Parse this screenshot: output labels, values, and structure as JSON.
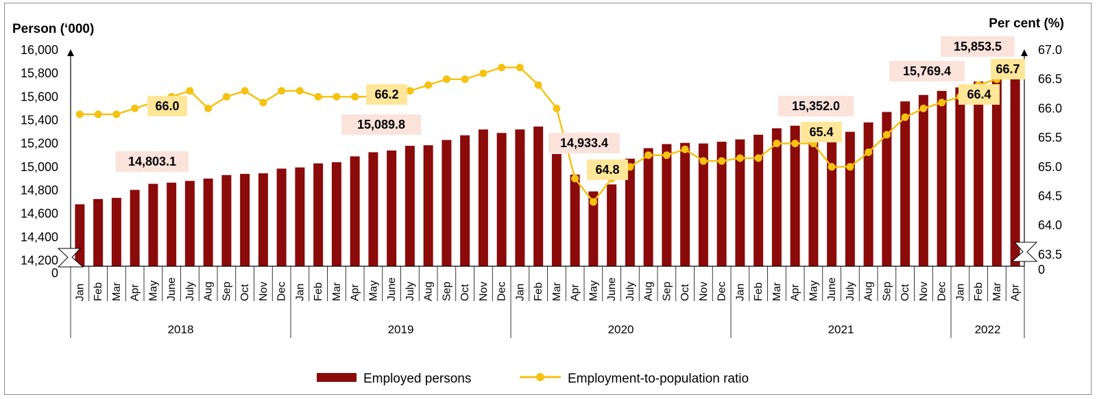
{
  "chart_data": {
    "type": "bar",
    "left_axis_title": "Person (‘000)",
    "right_axis_title": "Per cent (%)",
    "left_ticks": [
      "16,000",
      "15,800",
      "15,600",
      "15,400",
      "15,200",
      "15,000",
      "14,800",
      "14,600",
      "14,400",
      "14,200",
      "0"
    ],
    "right_ticks": [
      "67.0",
      "66.5",
      "66.0",
      "65.5",
      "65.0",
      "64.5",
      "64.0",
      "63.5",
      "0"
    ],
    "ylim_left": [
      14150,
      16000
    ],
    "ylim_right": [
      63.3,
      67.0
    ],
    "axis_break": true,
    "categories": [
      "Jan",
      "Feb",
      "Mar",
      "Apr",
      "May",
      "June",
      "July",
      "Aug",
      "Sep",
      "Oct",
      "Nov",
      "Dec",
      "Jan",
      "Feb",
      "Mar",
      "Apr",
      "May",
      "June",
      "July",
      "Aug",
      "Sep",
      "Oct",
      "Nov",
      "Dec",
      "Jan",
      "Feb",
      "Mar",
      "Apr",
      "May",
      "June",
      "July",
      "Aug",
      "Sep",
      "Oct",
      "Nov",
      "Dec",
      "Jan",
      "Feb",
      "Mar",
      "Apr",
      "May",
      "June",
      "July",
      "Aug",
      "Sep",
      "Oct",
      "Nov",
      "Dec",
      "Jan",
      "Feb",
      "Mar",
      "Apr"
    ],
    "years": [
      {
        "label": "2018",
        "months": 12
      },
      {
        "label": "2019",
        "months": 12
      },
      {
        "label": "2020",
        "months": 12
      },
      {
        "label": "2021",
        "months": 12
      },
      {
        "label": "2022",
        "months": 4
      }
    ],
    "series": [
      {
        "name": "Employed persons",
        "type": "bar",
        "axis": "left",
        "color": "#8b0a0a",
        "values": [
          14680,
          14725,
          14735,
          14803.1,
          14855,
          14865,
          14880,
          14900,
          14930,
          14940,
          14945,
          14985,
          14995,
          15030,
          15040,
          15089.8,
          15125,
          15140,
          15180,
          15185,
          15230,
          15270,
          15320,
          15290,
          15320,
          15345,
          15110,
          14933.4,
          14790,
          14850,
          15070,
          15160,
          15195,
          15205,
          15200,
          15215,
          15235,
          15275,
          15330,
          15352.0,
          15370,
          15300,
          15300,
          15380,
          15470,
          15560,
          15615,
          15650,
          15680,
          15730,
          15769.4,
          15853.5
        ]
      },
      {
        "name": "Employment-to-population ratio",
        "type": "line",
        "axis": "right",
        "color": "#f5c211",
        "values": [
          65.9,
          65.9,
          65.9,
          66.0,
          66.1,
          66.2,
          66.3,
          66.0,
          66.2,
          66.3,
          66.1,
          66.3,
          66.3,
          66.2,
          66.2,
          66.2,
          66.2,
          66.3,
          66.3,
          66.4,
          66.5,
          66.5,
          66.6,
          66.7,
          66.7,
          66.4,
          66.0,
          64.8,
          64.4,
          64.8,
          65.0,
          65.2,
          65.2,
          65.3,
          65.1,
          65.1,
          65.15,
          65.15,
          65.4,
          65.4,
          65.4,
          65.0,
          65.0,
          65.25,
          65.55,
          65.85,
          66.0,
          66.1,
          66.2,
          66.4,
          66.5,
          66.7
        ]
      }
    ],
    "callouts": [
      {
        "text": "14,803.1",
        "kind": "bar"
      },
      {
        "text": "15,089.8",
        "kind": "bar"
      },
      {
        "text": "14,933.4",
        "kind": "bar"
      },
      {
        "text": "15,352.0",
        "kind": "bar"
      },
      {
        "text": "15,769.4",
        "kind": "bar"
      },
      {
        "text": "15,853.5",
        "kind": "bar"
      },
      {
        "text": "66.0",
        "kind": "line"
      },
      {
        "text": "66.2",
        "kind": "line"
      },
      {
        "text": "64.8",
        "kind": "line"
      },
      {
        "text": "65.4",
        "kind": "line"
      },
      {
        "text": "66.4",
        "kind": "line"
      },
      {
        "text": "66.7",
        "kind": "line"
      }
    ],
    "callout_colors": {
      "bar": "#fbe3dc",
      "line": "#ffe699"
    },
    "legend": [
      "Employed persons",
      "Employment-to-population ratio"
    ],
    "legend_position": "bottom",
    "grid": false
  }
}
